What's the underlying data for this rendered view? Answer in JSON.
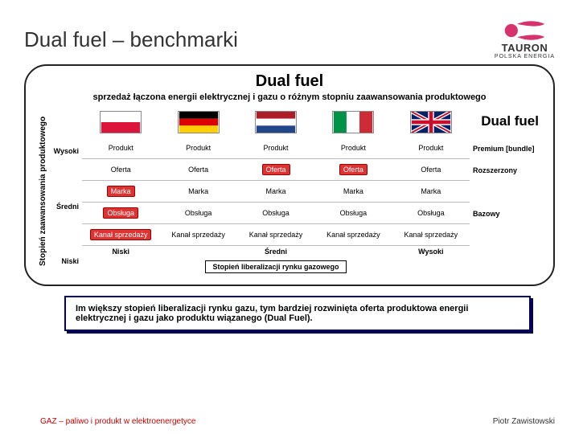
{
  "title": "Dual fuel – benchmarki",
  "logo": {
    "text": "TAURON",
    "sub": "POLSKA ENERGIA",
    "color": "#d6336c"
  },
  "box": {
    "title": "Dual fuel",
    "sub": "sprzedaż łączona energii elektrycznej i gazu o różnym stopniu zaawansowania produktowego",
    "corner": "Dual fuel"
  },
  "y_axis": {
    "label": "Stopień zaawansowania produktowego",
    "ticks": [
      "Wysoki",
      "Średni",
      "Niski"
    ]
  },
  "x_axis": {
    "label": "Stopień liberalizacji rynku gazowego",
    "ticks": [
      "Niski",
      "Średni",
      "Wysoki"
    ]
  },
  "countries": [
    "poland",
    "germany",
    "netherlands",
    "italy",
    "uk"
  ],
  "rows": [
    {
      "label": "Premium [bundle]",
      "cells": [
        "Produkt",
        "Produkt",
        "Produkt",
        "Produkt",
        "Produkt"
      ],
      "highlight": []
    },
    {
      "label": "Rozszerzony",
      "cells": [
        "Oferta",
        "Oferta",
        "Oferta",
        "Oferta",
        "Oferta"
      ],
      "highlight": [
        2,
        3
      ]
    },
    {
      "label": "",
      "cells": [
        "Marka",
        "Marka",
        "Marka",
        "Marka",
        "Marka"
      ],
      "highlight": [
        0
      ]
    },
    {
      "label": "Bazowy",
      "cells": [
        "Obsługa",
        "Obsługa",
        "Obsługa",
        "Obsługa",
        "Obsługa"
      ],
      "highlight": [
        0
      ]
    },
    {
      "label": "",
      "cells": [
        "Kanał sprzedaży",
        "Kanał sprzedaży",
        "Kanał sprzedaży",
        "Kanał sprzedaży",
        "Kanał sprzedaży"
      ],
      "highlight": [
        0
      ]
    }
  ],
  "highlight_color": "#d33",
  "note": "Im większy stopień liberalizacji rynku gazu, tym bardziej rozwinięta oferta produktowa energii elektrycznej i gazu jako produktu wiązanego (Dual Fuel).",
  "footer": {
    "left": "GAZ – paliwo i produkt w elektroenergetyce",
    "right": "Piotr Zawistowski"
  }
}
